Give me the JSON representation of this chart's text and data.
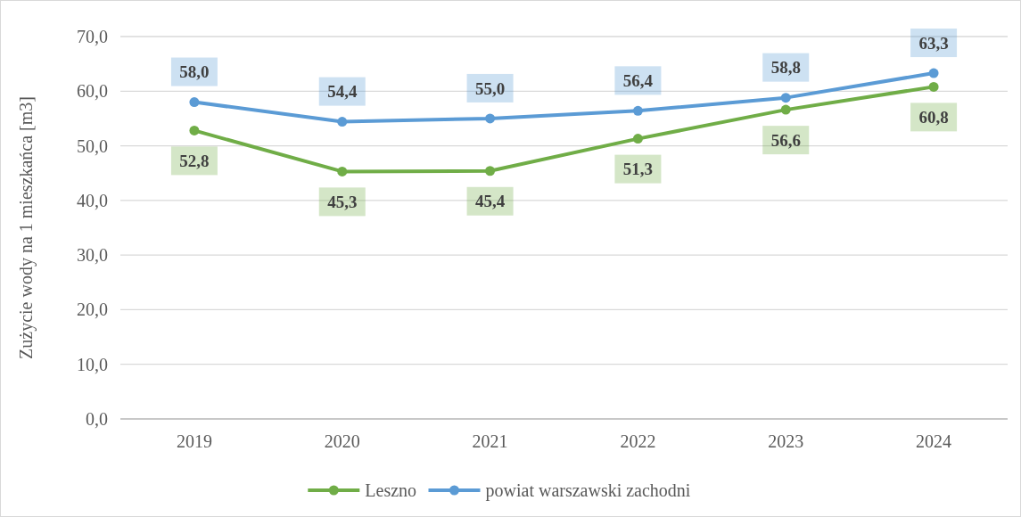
{
  "chart_data": {
    "type": "line",
    "ylabel": "Zużycie wody na 1 mieszkańca [m3]",
    "categories": [
      "2019",
      "2020",
      "2021",
      "2022",
      "2023",
      "2024"
    ],
    "series": [
      {
        "name": "Leszno",
        "color": "#70ad47",
        "values": [
          52.8,
          45.3,
          45.4,
          51.3,
          56.6,
          60.8
        ],
        "value_labels": [
          "52,8",
          "45,3",
          "45,4",
          "51,3",
          "56,6",
          "60,8"
        ]
      },
      {
        "name": "powiat warszawski zachodni",
        "color": "#5b9bd5",
        "values": [
          58.0,
          54.4,
          55.0,
          56.4,
          58.8,
          63.3
        ],
        "value_labels": [
          "58,0",
          "54,4",
          "55,0",
          "56,4",
          "58,8",
          "63,3"
        ]
      }
    ],
    "ylim": [
      0,
      70
    ],
    "yticks": [
      {
        "value": 0,
        "label": "0,0"
      },
      {
        "value": 10,
        "label": "10,0"
      },
      {
        "value": 20,
        "label": "20,0"
      },
      {
        "value": 30,
        "label": "30,0"
      },
      {
        "value": 40,
        "label": "40,0"
      },
      {
        "value": 50,
        "label": "50,0"
      },
      {
        "value": 60,
        "label": "60,0"
      },
      {
        "value": 70,
        "label": "70,0"
      }
    ],
    "grid": "y",
    "legend": "bottom",
    "marker": "circle",
    "line_style": "solid"
  }
}
